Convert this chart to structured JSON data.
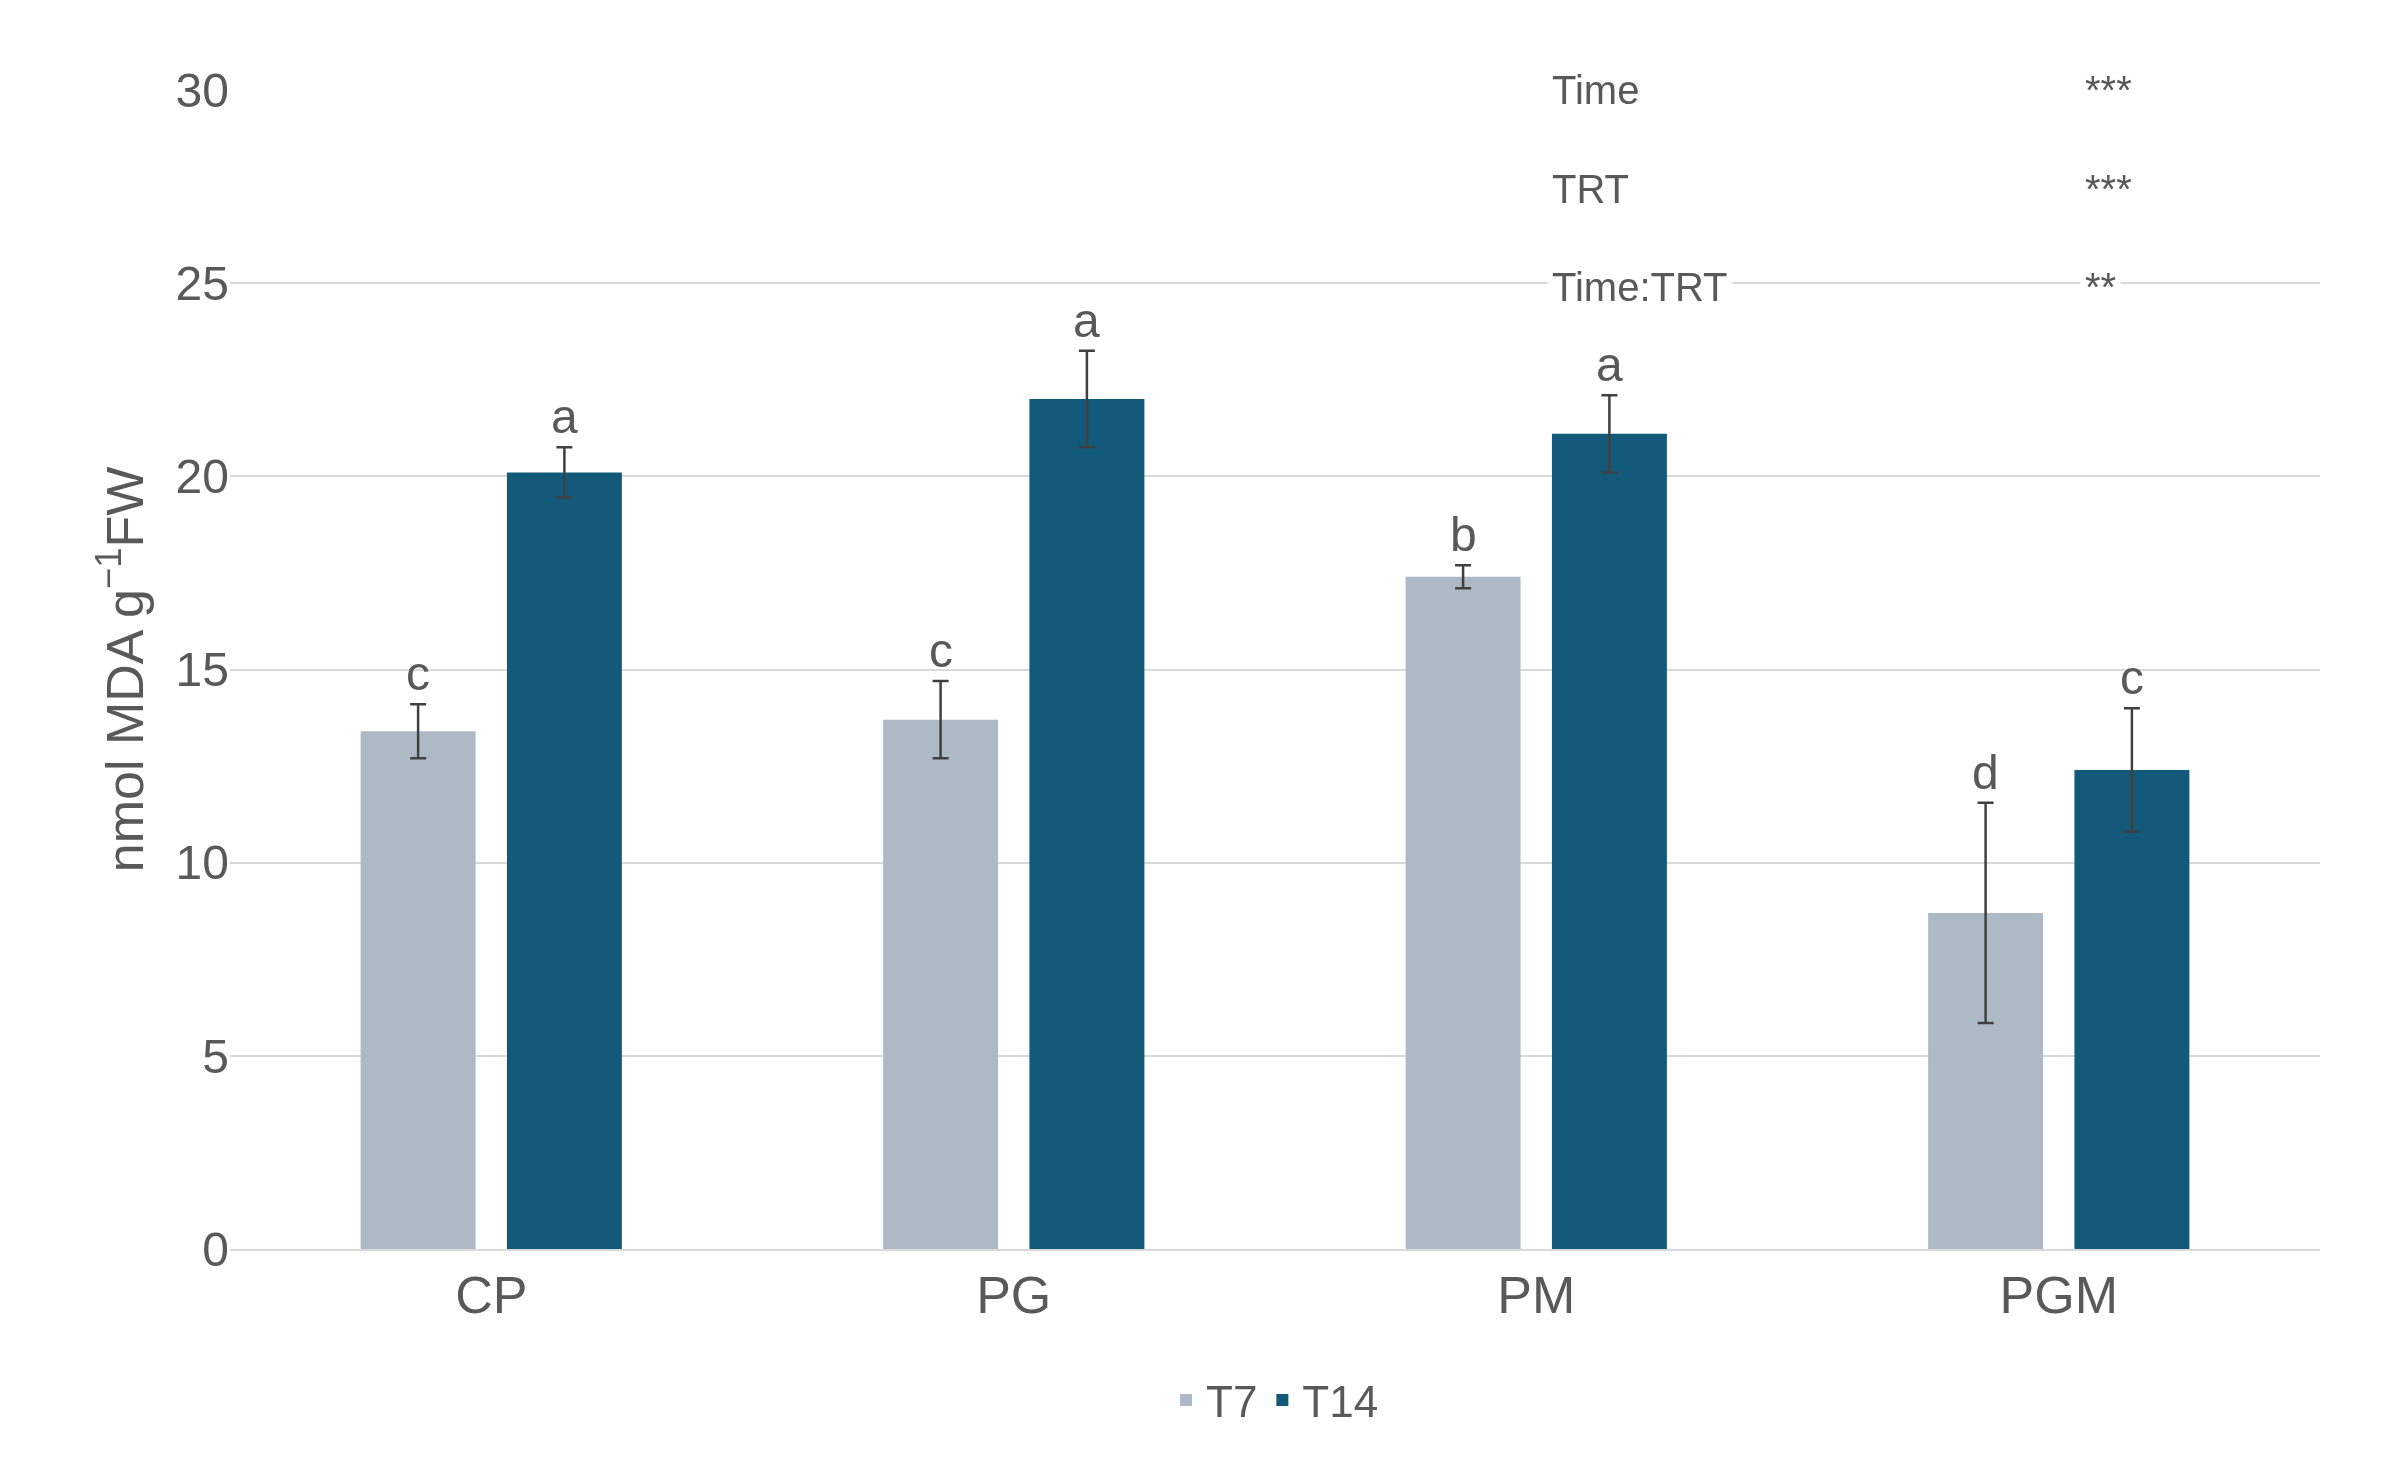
{
  "chart_data": {
    "type": "bar",
    "ylabel": "nmol MDA g$^{−1}$FW",
    "categories": [
      "CP",
      "PG",
      "PM",
      "PGM"
    ],
    "series": [
      {
        "name": "T7",
        "color": "#adb9c5",
        "values": [
          13.4,
          13.7,
          17.4,
          8.7
        ],
        "errors": [
          0.7,
          1.0,
          0.3,
          2.85
        ],
        "value_labels": [
          "c",
          "c",
          "b",
          "d"
        ]
      },
      {
        "name": "T14",
        "color": "#135a7a",
        "values": [
          20.1,
          22.0,
          21.1,
          12.4
        ],
        "errors": [
          0.65,
          1.25,
          1.0,
          1.6
        ],
        "value_labels": [
          "a",
          "a",
          "a",
          "c"
        ]
      }
    ],
    "ylim": [
      0,
      30
    ],
    "yticks": [
      0,
      5,
      10,
      15,
      20,
      25,
      30
    ],
    "grid": "y",
    "legend": "bottom",
    "annotations": [
      "Time",
      "***",
      "TRT",
      "***",
      "Time:TRT",
      "**"
    ]
  }
}
